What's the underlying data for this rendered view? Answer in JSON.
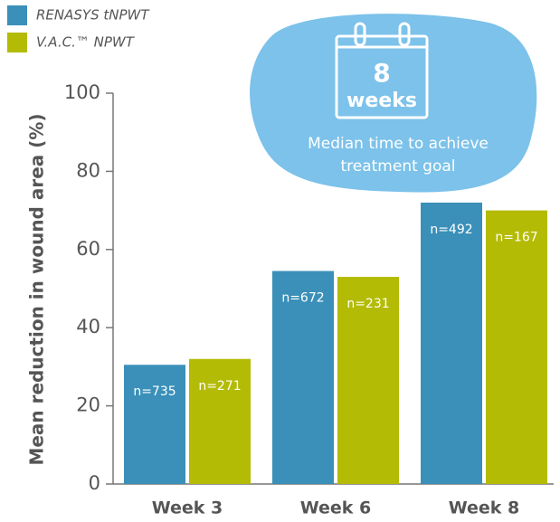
{
  "chart_data": {
    "type": "bar",
    "categories": [
      "Week 3",
      "Week 6",
      "Week 8"
    ],
    "series": [
      {
        "name": "RENASYS tNPWT",
        "color": "#3a90b8",
        "values": [
          30.5,
          54.5,
          72
        ],
        "annotations": [
          "n=735",
          "n=672",
          "n=492"
        ]
      },
      {
        "name": "V.A.C.™ NPWT",
        "color": "#b3bb05",
        "values": [
          32,
          53,
          70
        ],
        "annotations": [
          "n=271",
          "n=231",
          "n=167"
        ]
      }
    ],
    "y_label": "Mean reduction  in wound area (%)",
    "ylim": [
      0,
      100
    ],
    "yticks": [
      0,
      20,
      40,
      60,
      80,
      100
    ],
    "callout": {
      "number": "8",
      "unit": "weeks",
      "lines": [
        "Median time to achieve",
        "treatment goal"
      ]
    }
  }
}
